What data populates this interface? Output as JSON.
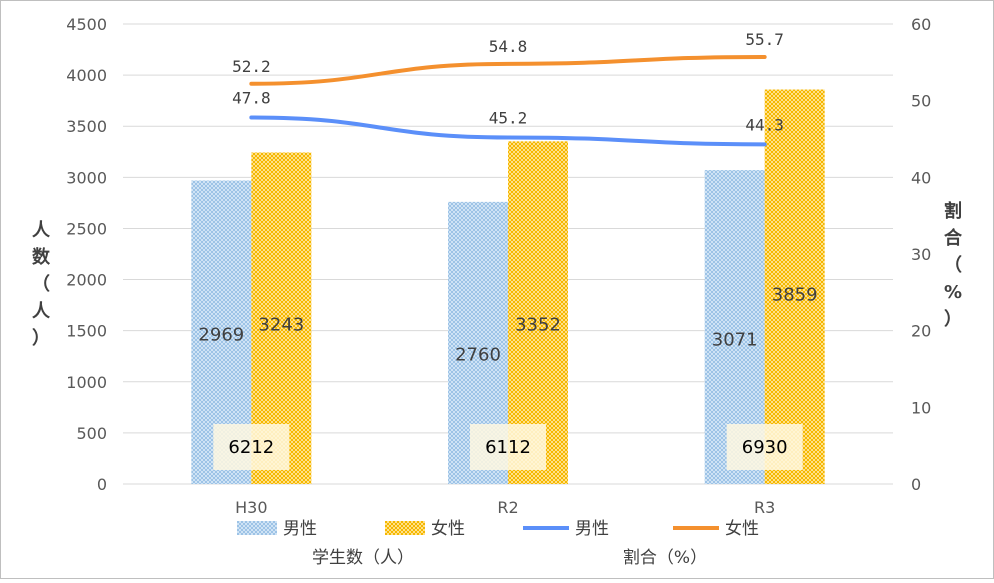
{
  "chart_data": {
    "type": "bar",
    "categories": [
      "H30",
      "R2",
      "R3"
    ],
    "series": [
      {
        "name": "男性",
        "kind": "bar",
        "axis": "left",
        "color": "#9dc3e6",
        "values": [
          2969,
          2760,
          3071
        ]
      },
      {
        "name": "女性",
        "kind": "bar",
        "axis": "left",
        "color": "#ffc000",
        "values": [
          3243,
          3352,
          3859
        ]
      },
      {
        "name": "男性",
        "kind": "line",
        "axis": "right",
        "color": "#5b8ff9",
        "values": [
          47.8,
          45.2,
          44.3
        ]
      },
      {
        "name": "女性",
        "kind": "line",
        "axis": "right",
        "color": "#f4902e",
        "values": [
          52.2,
          54.8,
          55.7
        ]
      }
    ],
    "totals": [
      "6212",
      "6112",
      "6930"
    ],
    "ylabel_left": "人数（人）",
    "ylabel_left_chars": [
      "人",
      "数",
      "（",
      "人",
      "）"
    ],
    "ylabel_right": "割合（%）",
    "ylabel_right_chars": [
      "割",
      "合",
      "（",
      "%",
      "）"
    ],
    "ylim_left": [
      0,
      4500
    ],
    "yticks_left": [
      0,
      500,
      1000,
      1500,
      2000,
      2500,
      3000,
      3500,
      4000,
      4500
    ],
    "ylim_right": [
      0,
      60
    ],
    "yticks_right": [
      0,
      10,
      20,
      30,
      40,
      50,
      60
    ],
    "grid": true,
    "legend_position": "bottom",
    "legend_group_labels": [
      "学生数（人）",
      "割合（%）"
    ]
  }
}
